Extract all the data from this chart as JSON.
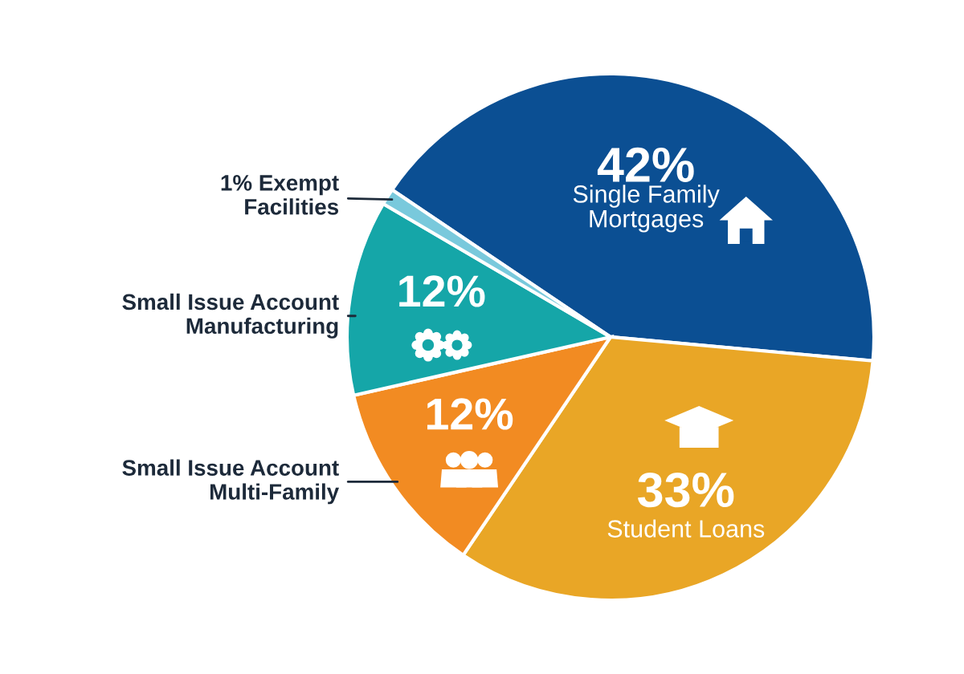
{
  "chart_data": {
    "type": "pie",
    "categories": [
      "Single Family Mortgages",
      "Student Loans",
      "Small Issue Account\nMulti-Family",
      "Small Issue Account\nManufacturing",
      "Exempt\nFacilities"
    ],
    "values": [
      42,
      33,
      12,
      12,
      1
    ],
    "value_labels": [
      "42%",
      "33%",
      "12%",
      "12%",
      "1%"
    ],
    "colors": [
      "#0b4f93",
      "#e9a626",
      "#f28b22",
      "#15a6a8",
      "#79c9dc"
    ]
  }
}
